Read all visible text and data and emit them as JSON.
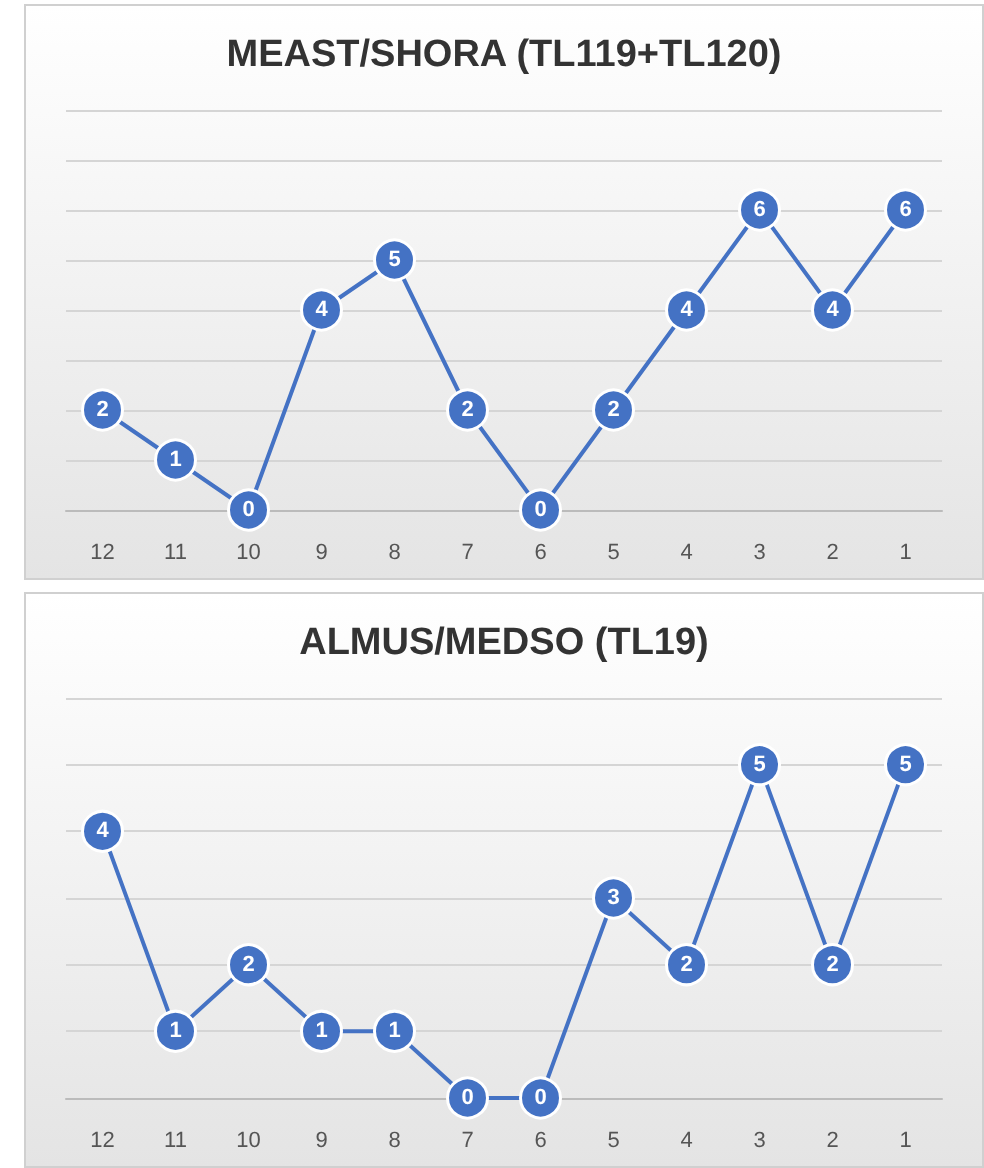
{
  "chart_data": [
    {
      "type": "line",
      "title": "MEAST/SHORA (TL119+TL120)",
      "categories": [
        "12",
        "11",
        "10",
        "9",
        "8",
        "7",
        "6",
        "5",
        "4",
        "3",
        "2",
        "1"
      ],
      "series": [
        {
          "color": "#4472c4",
          "values": [
            2,
            1,
            0,
            4,
            5,
            2,
            0,
            2,
            4,
            6,
            4,
            6
          ]
        }
      ],
      "ylim": [
        0,
        8
      ],
      "yticks": [
        {
          "value": 0,
          "label": null
        },
        {
          "value": 1,
          "label": null
        },
        {
          "value": 2,
          "label": null
        },
        {
          "value": 3,
          "label": null
        },
        {
          "value": 4,
          "label": null
        },
        {
          "value": 5,
          "label": null
        },
        {
          "value": 6,
          "label": null
        },
        {
          "value": 7,
          "label": null
        },
        {
          "value": 8,
          "label": null
        }
      ],
      "tick_labels": "x",
      "grid": "y",
      "marker": "circle",
      "line_style": "solid",
      "data_labels": true
    },
    {
      "type": "line",
      "title": "ALMUS/MEDSO (TL19)",
      "categories": [
        "12",
        "11",
        "10",
        "9",
        "8",
        "7",
        "6",
        "5",
        "4",
        "3",
        "2",
        "1"
      ],
      "series": [
        {
          "color": "#4472c4",
          "values": [
            4,
            1,
            2,
            1,
            1,
            0,
            0,
            3,
            2,
            5,
            2,
            5
          ]
        }
      ],
      "ylim": [
        0,
        6
      ],
      "yticks": [
        {
          "value": 0,
          "label": null
        },
        {
          "value": 1,
          "label": null
        },
        {
          "value": 2,
          "label": null
        },
        {
          "value": 3,
          "label": null
        },
        {
          "value": 4,
          "label": null
        },
        {
          "value": 5,
          "label": null
        },
        {
          "value": 6,
          "label": null
        }
      ],
      "tick_labels": "x",
      "grid": "y",
      "marker": "circle",
      "line_style": "solid",
      "data_labels": true
    }
  ]
}
